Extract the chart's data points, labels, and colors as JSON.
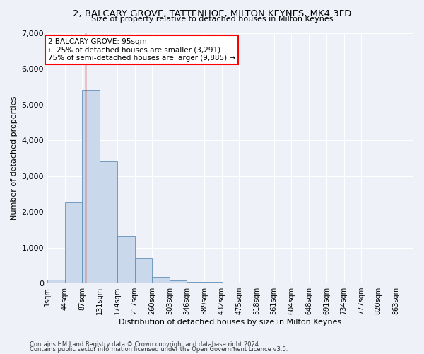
{
  "title": "2, BALCARY GROVE, TATTENHOE, MILTON KEYNES, MK4 3FD",
  "subtitle": "Size of property relative to detached houses in Milton Keynes",
  "xlabel": "Distribution of detached houses by size in Milton Keynes",
  "ylabel": "Number of detached properties",
  "bar_color": "#c9d9eb",
  "bar_edge_color": "#6090b8",
  "annotation_box_text": "2 BALCARY GROVE: 95sqm\n← 25% of detached houses are smaller (3,291)\n75% of semi-detached houses are larger (9,885) →",
  "annotation_box_color": "white",
  "annotation_box_edge_color": "red",
  "vline_x": 95,
  "vline_color": "#cc0000",
  "footnote1": "Contains HM Land Registry data © Crown copyright and database right 2024.",
  "footnote2": "Contains public sector information licensed under the Open Government Licence v3.0.",
  "background_color": "#eef2f8",
  "categories": [
    "1sqm",
    "44sqm",
    "87sqm",
    "131sqm",
    "174sqm",
    "217sqm",
    "260sqm",
    "303sqm",
    "346sqm",
    "389sqm",
    "432sqm",
    "475sqm",
    "518sqm",
    "561sqm",
    "604sqm",
    "648sqm",
    "691sqm",
    "734sqm",
    "777sqm",
    "820sqm",
    "863sqm"
  ],
  "bin_edges": [
    1,
    44,
    87,
    131,
    174,
    217,
    260,
    303,
    346,
    389,
    432,
    475,
    518,
    561,
    604,
    648,
    691,
    734,
    777,
    820,
    863,
    906
  ],
  "values": [
    100,
    2250,
    5400,
    3400,
    1300,
    700,
    170,
    90,
    30,
    12,
    5,
    2,
    1,
    0,
    0,
    0,
    0,
    0,
    0,
    0,
    0
  ],
  "ylim": [
    0,
    7000
  ],
  "yticks": [
    0,
    1000,
    2000,
    3000,
    4000,
    5000,
    6000,
    7000
  ]
}
